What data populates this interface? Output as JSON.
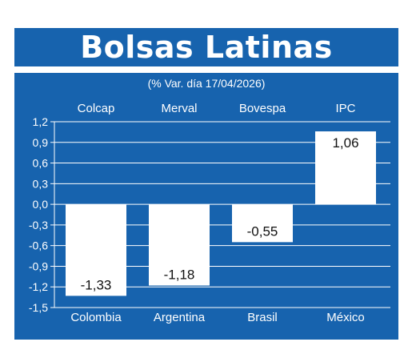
{
  "header": {
    "title": "Bolsas Latinas"
  },
  "chart_data": {
    "type": "bar",
    "title": "Bolsas Latinas",
    "subtitle": "(% Var. día 17/04/2026)",
    "index_names": [
      "Colcap",
      "Merval",
      "Bovespa",
      "IPC"
    ],
    "categories": [
      "Colombia",
      "Argentina",
      "Brasil",
      "México"
    ],
    "values": [
      -1.33,
      -1.18,
      -0.55,
      1.06
    ],
    "value_labels": [
      "-1,33",
      "-1,18",
      "-0,55",
      "1,06"
    ],
    "ylim": [
      -1.5,
      1.2
    ],
    "yticks": [
      1.2,
      0.9,
      0.6,
      0.3,
      0.0,
      -0.3,
      -0.6,
      -0.9,
      -1.2,
      -1.5
    ],
    "ytick_labels": [
      "1,2",
      "0,9",
      "0,6",
      "0,3",
      "0,0",
      "-0,3",
      "-0,6",
      "-0,9",
      "-1,2",
      "-1,5"
    ],
    "grid": true,
    "colors": {
      "panel": "#1763ae",
      "bars": "#ffffff",
      "text": "#ffffff",
      "label_text": "#111111",
      "grid": "#ffffff"
    }
  }
}
